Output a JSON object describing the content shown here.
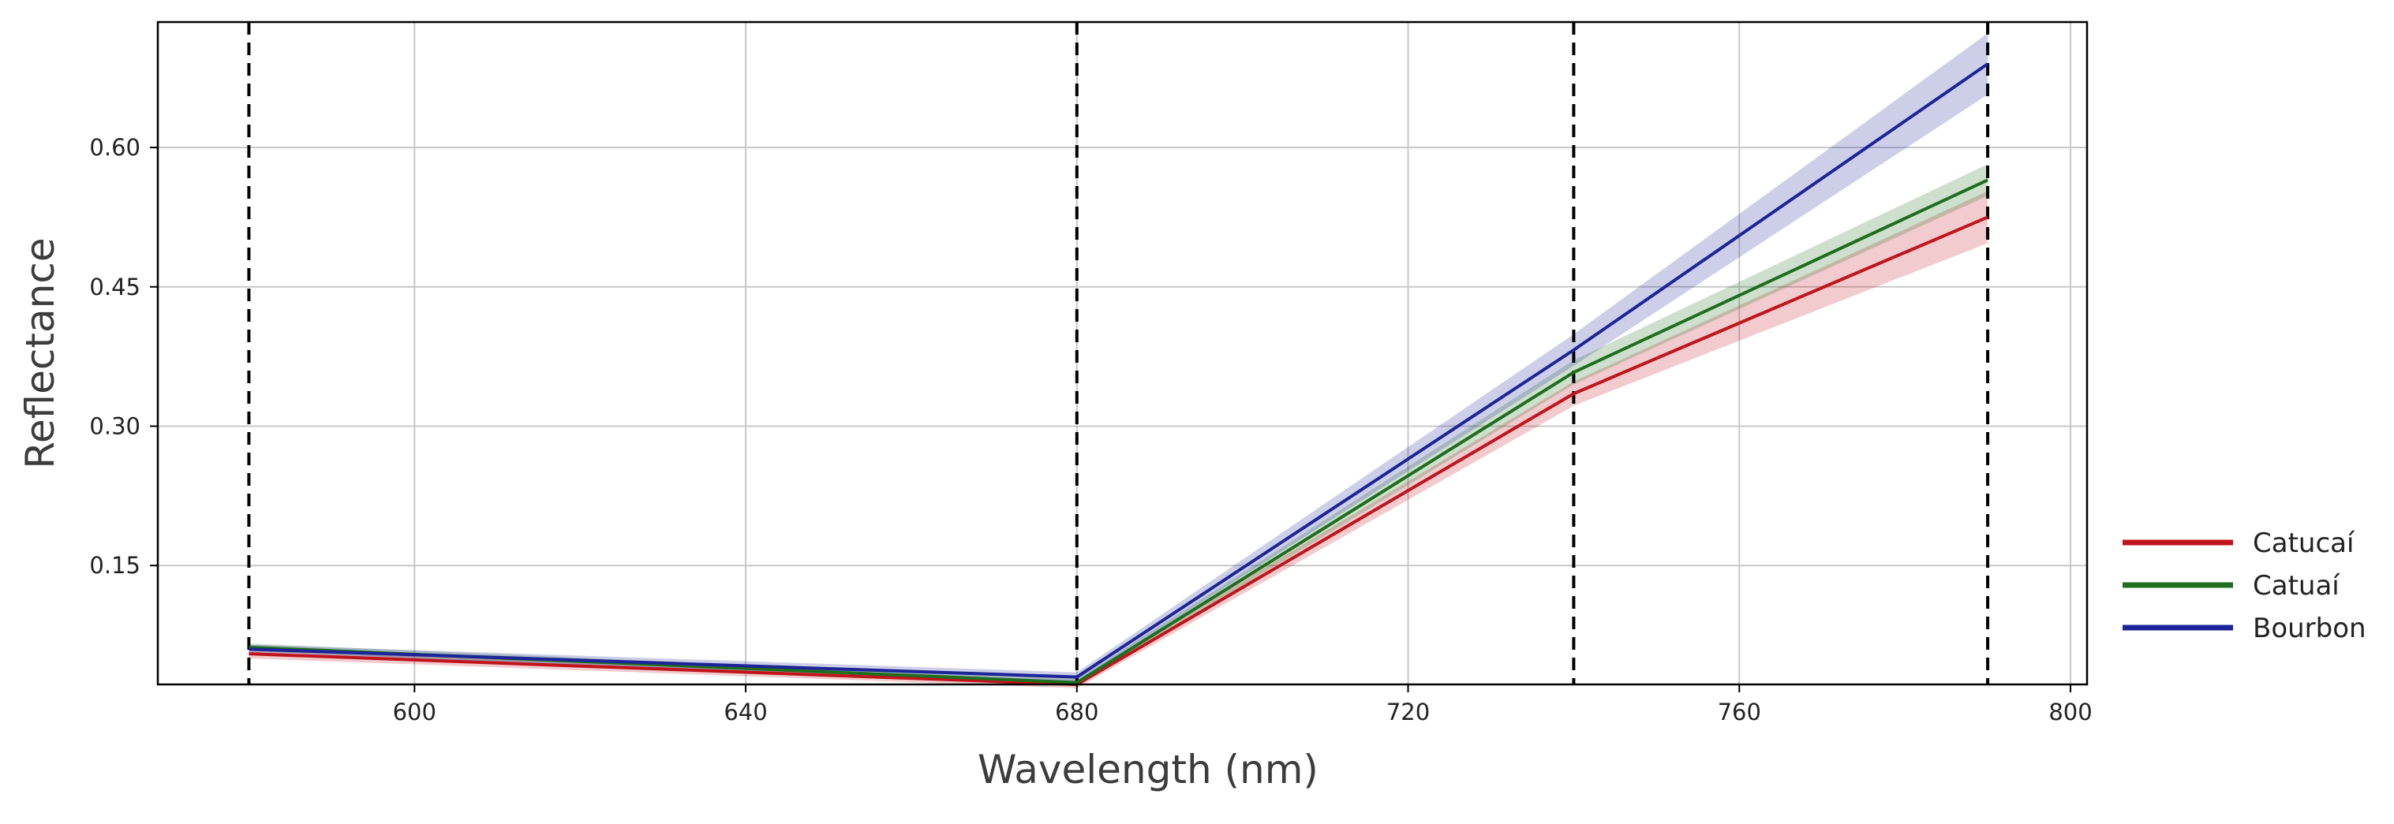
{
  "chart_data": {
    "type": "line",
    "title": "",
    "xlabel": "Wavelength (nm)",
    "ylabel": "Reflectance",
    "xlim": [
      569,
      802
    ],
    "ylim": [
      0.022,
      0.735
    ],
    "xticks": [
      600,
      640,
      680,
      720,
      760,
      800
    ],
    "yticks": [
      0.15,
      0.3,
      0.45,
      0.6
    ],
    "x_tick_labels": [
      "600",
      "640",
      "680",
      "720",
      "760",
      "800"
    ],
    "y_tick_labels": [
      "0.15",
      "0.30",
      "0.45",
      "0.60"
    ],
    "grid": true,
    "legend_position": "outside-right-bottom",
    "vertical_dashed_lines": [
      580,
      680,
      740,
      790
    ],
    "x": [
      580,
      680,
      740,
      790
    ],
    "series": [
      {
        "name": "Catucaí",
        "color": "#c0141c",
        "values": [
          0.055,
          0.022,
          0.335,
          0.525
        ],
        "lower": [
          0.05,
          0.018,
          0.322,
          0.497
        ],
        "upper": [
          0.06,
          0.026,
          0.348,
          0.553
        ]
      },
      {
        "name": "Catuaí",
        "color": "#1e6e1e",
        "values": [
          0.062,
          0.024,
          0.358,
          0.565
        ],
        "lower": [
          0.058,
          0.02,
          0.345,
          0.548
        ],
        "upper": [
          0.066,
          0.028,
          0.371,
          0.582
        ]
      },
      {
        "name": "Bourbon",
        "color": "#1c2498",
        "values": [
          0.06,
          0.03,
          0.382,
          0.69
        ],
        "lower": [
          0.055,
          0.025,
          0.365,
          0.657
        ],
        "upper": [
          0.065,
          0.035,
          0.399,
          0.723
        ]
      }
    ]
  }
}
